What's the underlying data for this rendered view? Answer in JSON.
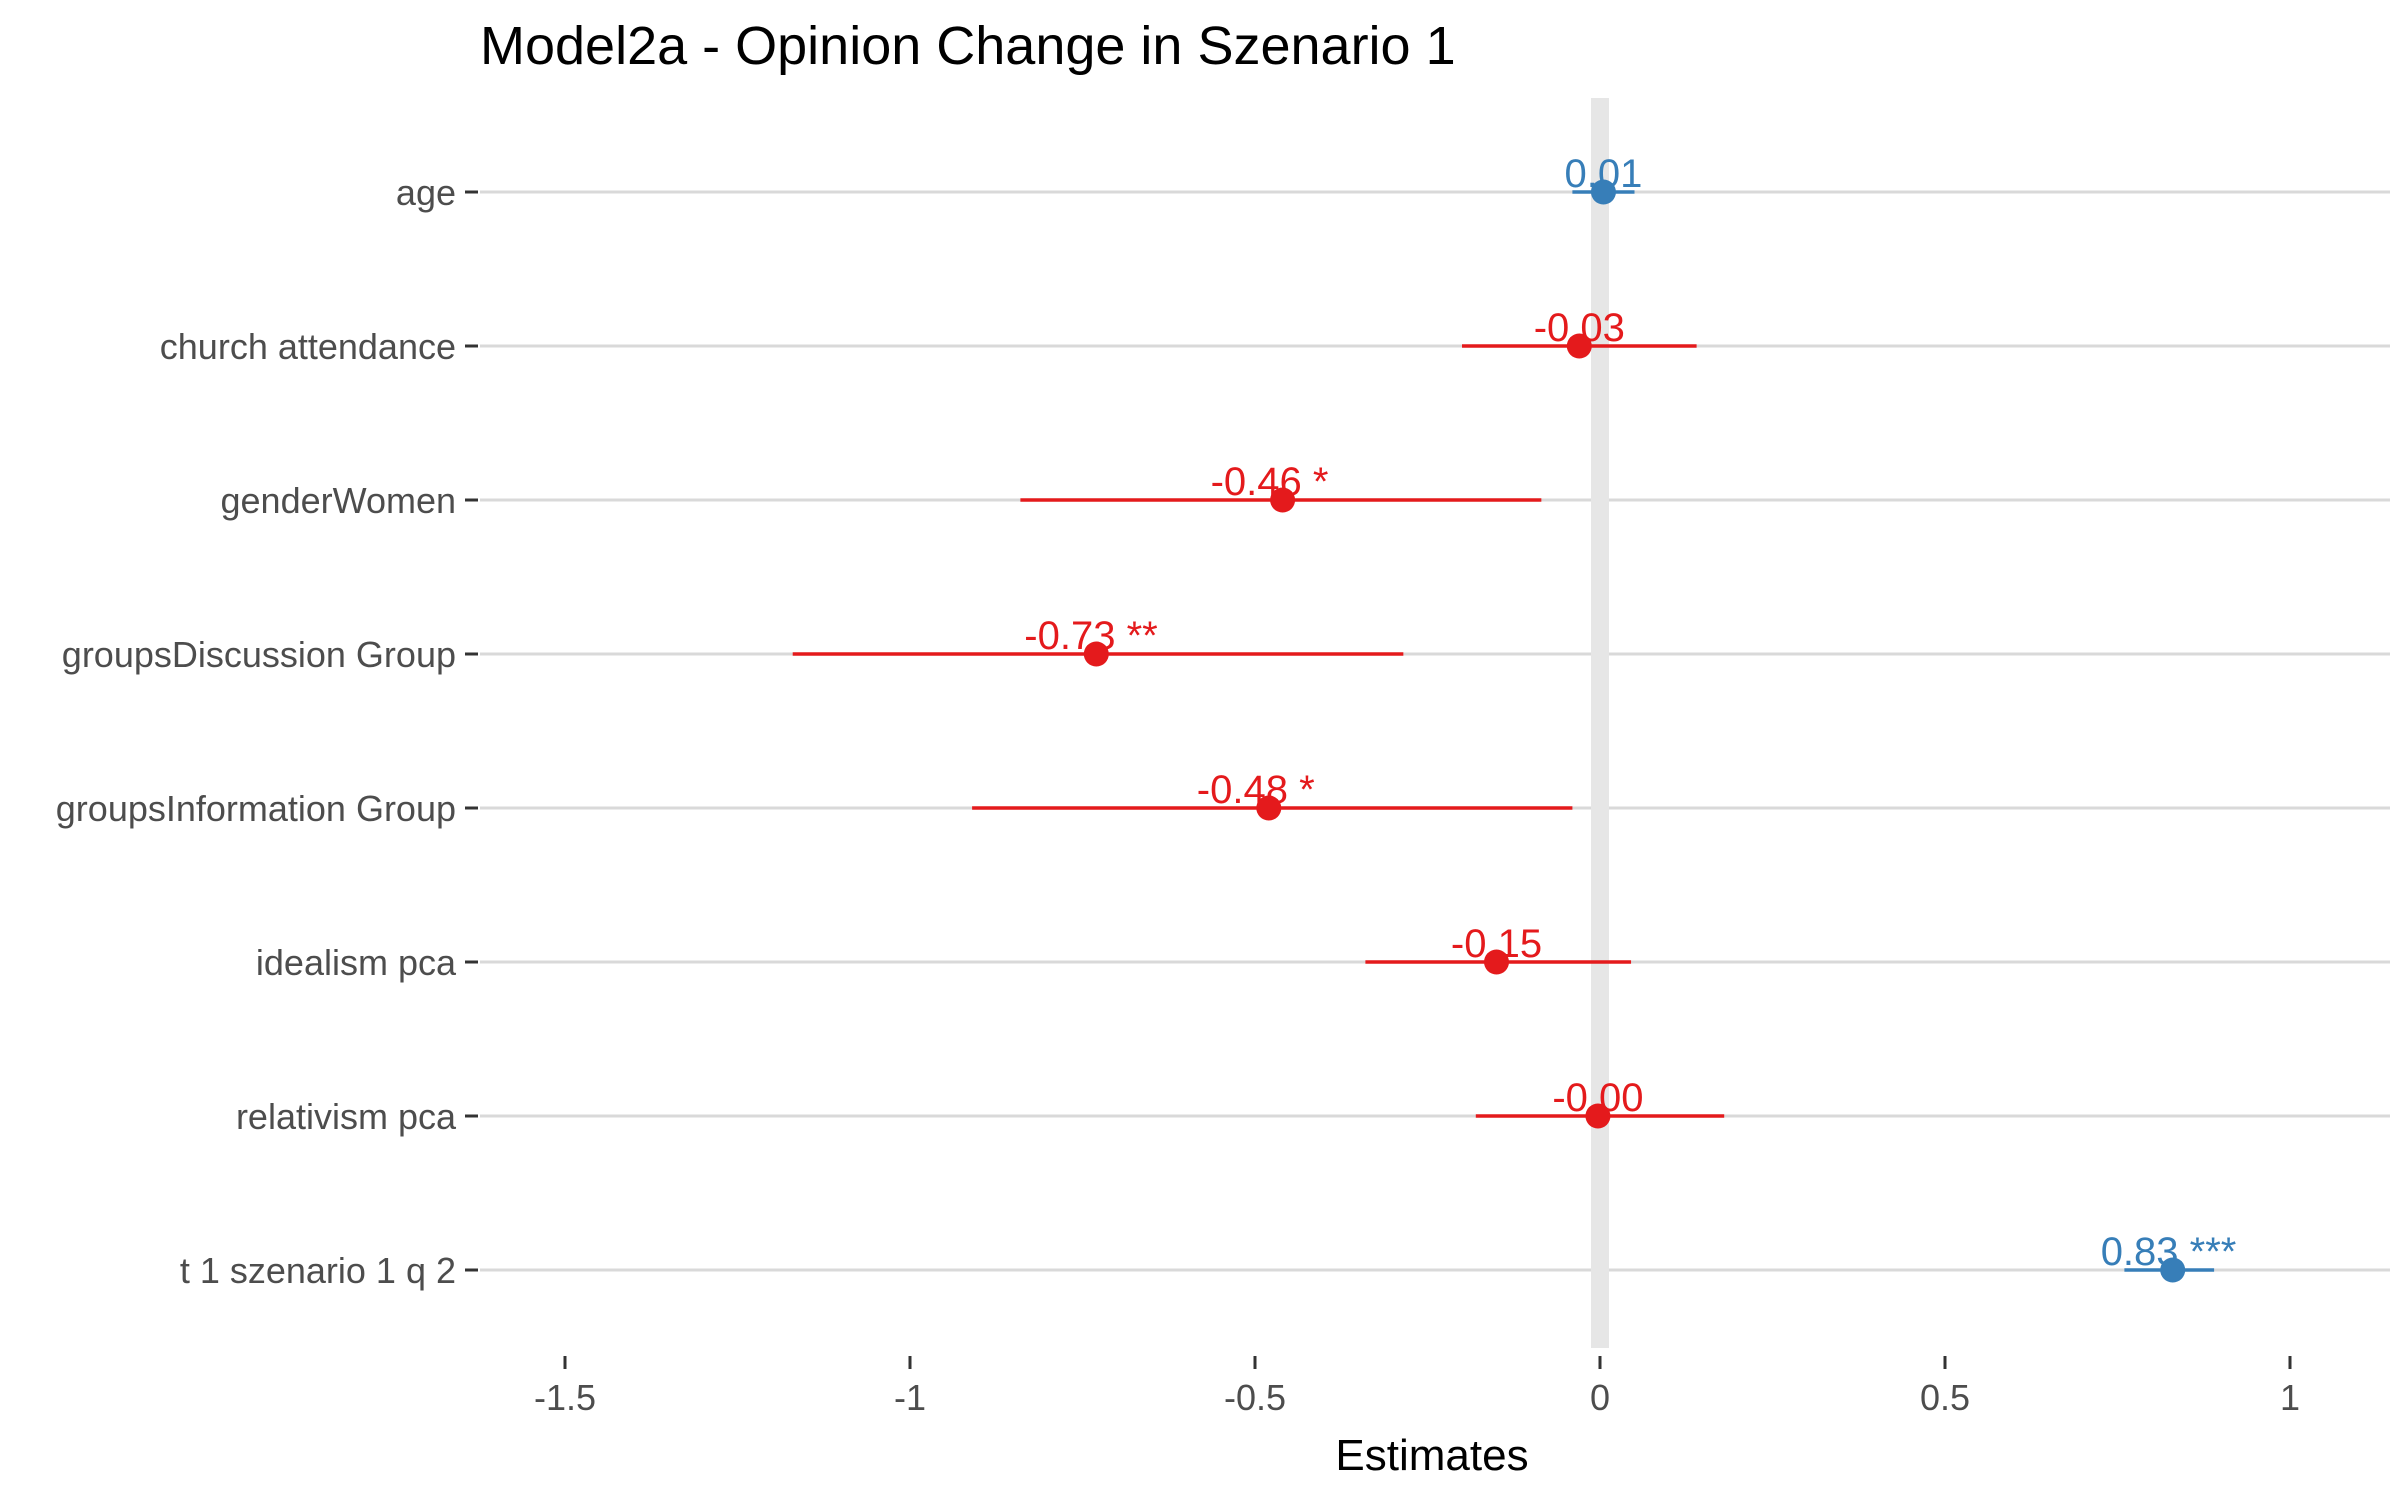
{
  "chart_data": {
    "type": "forest",
    "title": "Model2a - Opinion Change in Szenario 1",
    "xlabel": "Estimates",
    "ylabel": "",
    "xlim": [
      -1.7,
      1.12
    ],
    "xticks": [
      -1.5,
      -1,
      -0.5,
      0,
      0.5,
      1
    ],
    "xtick_labels": [
      "-1.5",
      "-1",
      "-0.5",
      "0",
      "0.5",
      "1"
    ],
    "grid": "horizontal",
    "zero_line": true,
    "terms": [
      {
        "label": "age",
        "estimate": 0.005,
        "ci": [
          -0.04,
          0.05
        ],
        "text": "0.01",
        "sign": "positive"
      },
      {
        "label": "church attendance",
        "estimate": -0.03,
        "ci": [
          -0.2,
          0.14
        ],
        "text": "-0.03",
        "sign": "negative"
      },
      {
        "label": "genderWomen",
        "estimate": -0.46,
        "ci": [
          -0.84,
          -0.085
        ],
        "text": "-0.46 *",
        "sign": "negative"
      },
      {
        "label": "groupsDiscussion Group",
        "estimate": -0.73,
        "ci": [
          -1.17,
          -0.285
        ],
        "text": "-0.73 **",
        "sign": "negative"
      },
      {
        "label": "groupsInformation Group",
        "estimate": -0.48,
        "ci": [
          -0.91,
          -0.04
        ],
        "text": "-0.48 *",
        "sign": "negative"
      },
      {
        "label": "idealism pca",
        "estimate": -0.15,
        "ci": [
          -0.34,
          0.045
        ],
        "text": "-0.15",
        "sign": "negative"
      },
      {
        "label": "relativism pca",
        "estimate": -0.003,
        "ci": [
          -0.18,
          0.18
        ],
        "text": "-0.00",
        "sign": "negative"
      },
      {
        "label": "t 1 szenario 1 q 2",
        "estimate": 0.83,
        "ci": [
          0.76,
          0.89
        ],
        "text": "0.83 ***",
        "sign": "positive"
      }
    ],
    "colors": {
      "positive": "#377eb8",
      "negative": "#e41a1c",
      "grid": "#d9d9d9",
      "zero_line": "#e6e6e6",
      "tick": "#333333"
    }
  }
}
